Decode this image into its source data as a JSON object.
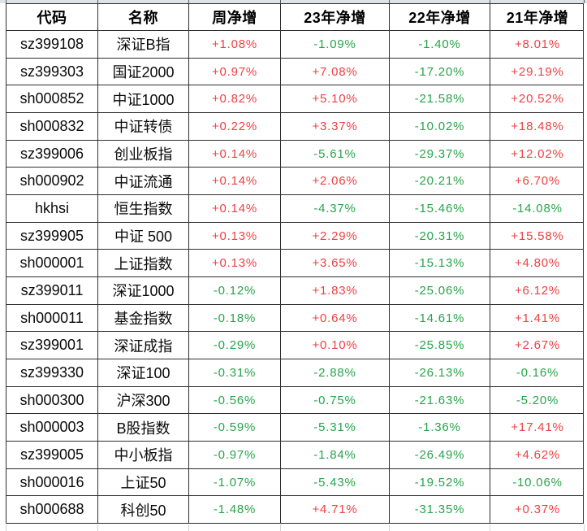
{
  "colors": {
    "positive": "#ef4043",
    "negative": "#28a44b",
    "grid_border": "#2e2e2e"
  },
  "table": {
    "header": [
      "代码",
      "名称",
      "周净增",
      "23年净增",
      "22年净增",
      "21年净增"
    ],
    "rows": [
      {
        "code": "sz399108",
        "name": "深证B指",
        "week": "+1.08%",
        "y23": "-1.09%",
        "y22": "-1.40%",
        "y21": "+8.01%"
      },
      {
        "code": "sz399303",
        "name": "国证2000",
        "week": "+0.97%",
        "y23": "+7.08%",
        "y22": "-17.20%",
        "y21": "+29.19%"
      },
      {
        "code": "sh000852",
        "name": "中证1000",
        "week": "+0.82%",
        "y23": "+5.10%",
        "y22": "-21.58%",
        "y21": "+20.52%"
      },
      {
        "code": "sh000832",
        "name": "中证转债",
        "week": "+0.22%",
        "y23": "+3.37%",
        "y22": "-10.02%",
        "y21": "+18.48%"
      },
      {
        "code": "sz399006",
        "name": "创业板指",
        "week": "+0.14%",
        "y23": "-5.61%",
        "y22": "-29.37%",
        "y21": "+12.02%"
      },
      {
        "code": "sh000902",
        "name": "中证流通",
        "week": "+0.14%",
        "y23": "+2.06%",
        "y22": "-20.21%",
        "y21": "+6.70%"
      },
      {
        "code": "hkhsi",
        "name": "恒生指数",
        "week": "+0.14%",
        "y23": "-4.37%",
        "y22": "-15.46%",
        "y21": "-14.08%"
      },
      {
        "code": "sz399905",
        "name": "中证 500",
        "week": "+0.13%",
        "y23": "+2.29%",
        "y22": "-20.31%",
        "y21": "+15.58%"
      },
      {
        "code": "sh000001",
        "name": "上证指数",
        "week": "+0.13%",
        "y23": "+3.65%",
        "y22": "-15.13%",
        "y21": "+4.80%"
      },
      {
        "code": "sz399011",
        "name": "深证1000",
        "week": "-0.12%",
        "y23": "+1.83%",
        "y22": "-25.06%",
        "y21": "+6.12%"
      },
      {
        "code": "sh000011",
        "name": "基金指数",
        "week": "-0.18%",
        "y23": "+0.64%",
        "y22": "-14.61%",
        "y21": "+1.41%"
      },
      {
        "code": "sz399001",
        "name": "深证成指",
        "week": "-0.29%",
        "y23": "+0.10%",
        "y22": "-25.85%",
        "y21": "+2.67%"
      },
      {
        "code": "sz399330",
        "name": "深证100",
        "week": "-0.31%",
        "y23": "-2.88%",
        "y22": "-26.13%",
        "y21": "-0.16%"
      },
      {
        "code": "sh000300",
        "name": "沪深300",
        "week": "-0.56%",
        "y23": "-0.75%",
        "y22": "-21.63%",
        "y21": "-5.20%"
      },
      {
        "code": "sh000003",
        "name": "B股指数",
        "week": "-0.59%",
        "y23": "-5.31%",
        "y22": "-1.36%",
        "y21": "+17.41%"
      },
      {
        "code": "sz399005",
        "name": "中小板指",
        "week": "-0.97%",
        "y23": "-1.84%",
        "y22": "-26.49%",
        "y21": "+4.62%"
      },
      {
        "code": "sh000016",
        "name": "上证50",
        "week": "-1.07%",
        "y23": "-5.43%",
        "y22": "-19.52%",
        "y21": "-10.06%"
      },
      {
        "code": "sh000688",
        "name": "科创50",
        "week": "-1.48%",
        "y23": "+4.71%",
        "y22": "-31.35%",
        "y21": "+0.37%"
      }
    ]
  }
}
